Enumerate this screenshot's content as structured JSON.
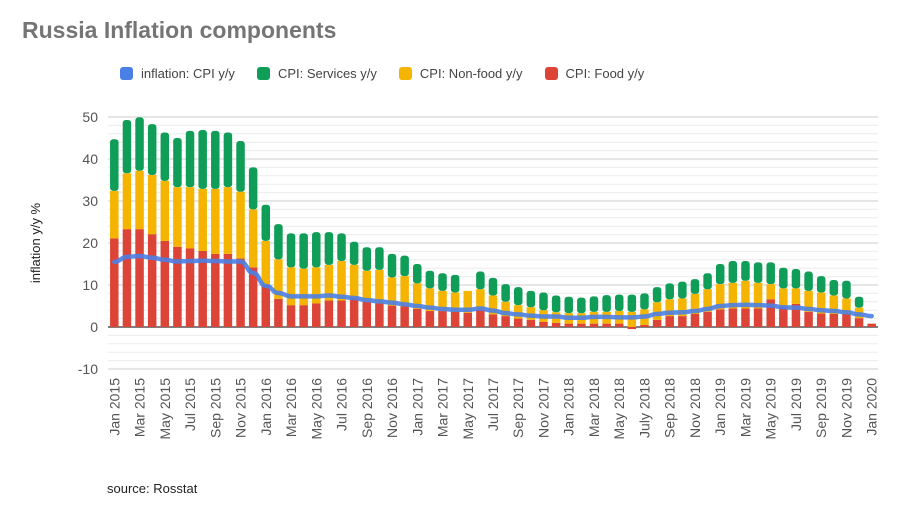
{
  "chart_data": {
    "type": "bar",
    "stacked": true,
    "title": "Russia Inflation components",
    "ylabel": "inflation y/y %",
    "xlabel": "",
    "ylim": [
      -10,
      50
    ],
    "yticks": [
      -10,
      0,
      10,
      20,
      30,
      40,
      50
    ],
    "grid": true,
    "legend_position": "top",
    "source": "source: Rosstat",
    "categories": [
      "Jan 2015",
      "Feb 2015",
      "Mar 2015",
      "Apr 2015",
      "May 2015",
      "Jun 2015",
      "Jul 2015",
      "Aug 2015",
      "Sep 2015",
      "Oct 2015",
      "Nov 2015",
      "Dec 2015",
      "Jan 2016",
      "Feb 2016",
      "Mar 2016",
      "Apr 2016",
      "May 2016",
      "Jun 2016",
      "Jul 2016",
      "Aug 2016",
      "Sep 2016",
      "Oct 2016",
      "Nov 2016",
      "Dec 2016",
      "Jan 2017",
      "Feb 2017",
      "Mar 2017",
      "Apr 2017",
      "May 2017",
      "Jun 2017",
      "Jul 2017",
      "Aug 2017",
      "Sep 2017",
      "Oct 2017",
      "Nov 2017",
      "Dec 2017",
      "Jan 2018",
      "Feb 2018",
      "Mar 2018",
      "Apr 2018",
      "May 2018",
      "Jun 2018",
      "July 2018",
      "Aug 2018",
      "Sep 2018",
      "Oct 2018",
      "Nov 2018",
      "Dec 2018",
      "Jan 2019",
      "Feb 2019",
      "Mar 2019",
      "Apr 2019",
      "May 2019",
      "Jun 2019",
      "Jul 2019",
      "Aug 2019",
      "Sep 2019",
      "Oct 2019",
      "Nov 2019",
      "Dec 2019",
      "Jan 2020"
    ],
    "series": [
      {
        "name": "CPI: Food y/y",
        "type": "bar",
        "color": "#db4437",
        "values": [
          21.1,
          23.3,
          23.3,
          22.1,
          20.5,
          19.1,
          18.7,
          18.1,
          17.4,
          17.4,
          16.3,
          14.2,
          10.0,
          6.7,
          5.2,
          5.2,
          5.6,
          6.3,
          6.3,
          7.0,
          6.0,
          5.6,
          5.1,
          4.9,
          4.3,
          3.8,
          3.8,
          3.6,
          3.4,
          4.1,
          3.0,
          2.6,
          2.0,
          1.7,
          1.2,
          1.0,
          0.8,
          0.8,
          0.8,
          0.8,
          0.8,
          -0.5,
          0.5,
          1.7,
          2.6,
          2.6,
          3.1,
          3.6,
          4.2,
          4.4,
          4.4,
          4.4,
          6.6,
          4.8,
          5.5,
          3.6,
          3.2,
          3.1,
          3.1,
          2.1,
          0.8
        ]
      },
      {
        "name": "CPI: Non-food y/y",
        "type": "bar",
        "color": "#f4b400",
        "values": [
          11.3,
          13.3,
          13.9,
          14.1,
          14.3,
          14.2,
          14.6,
          14.8,
          15.5,
          15.9,
          15.9,
          13.8,
          10.5,
          9.4,
          9.0,
          8.7,
          8.6,
          8.5,
          9.4,
          7.8,
          7.4,
          8.0,
          6.7,
          7.2,
          6.1,
          5.4,
          4.8,
          4.6,
          5.2,
          4.9,
          4.5,
          3.4,
          3.2,
          3.0,
          2.8,
          2.5,
          2.5,
          2.5,
          2.8,
          2.8,
          3.0,
          3.6,
          3.7,
          4.2,
          4.0,
          4.2,
          4.8,
          5.4,
          6.0,
          6.1,
          6.6,
          6.1,
          3.6,
          4.4,
          3.7,
          5.0,
          5.0,
          4.4,
          3.7,
          2.5,
          0
        ]
      },
      {
        "name": "CPI: Services y/y",
        "type": "bar",
        "color": "#0f9d58",
        "values": [
          12.3,
          12.7,
          12.7,
          12.1,
          11.5,
          11.7,
          13.4,
          14.0,
          13.8,
          13.0,
          12.1,
          10.0,
          8.6,
          8.4,
          8.1,
          8.4,
          8.4,
          7.8,
          6.6,
          5.5,
          5.6,
          5.4,
          5.6,
          4.9,
          4.6,
          4.2,
          4.2,
          4.2,
          0,
          4.2,
          4.2,
          4.2,
          4.3,
          3.9,
          4.2,
          4.0,
          3.9,
          3.7,
          3.7,
          4.0,
          3.9,
          4.1,
          3.8,
          3.6,
          3.8,
          4.0,
          3.5,
          3.8,
          4.8,
          5.2,
          4.7,
          4.9,
          5.2,
          4.9,
          4.6,
          4.6,
          3.9,
          3.7,
          4.2,
          2.6,
          0
        ]
      },
      {
        "name": "inflation: CPI y/y",
        "type": "line",
        "color": "#4a7fe6",
        "values": [
          15.5,
          16.7,
          16.9,
          16.5,
          16.0,
          15.6,
          15.7,
          15.8,
          15.7,
          15.6,
          15.6,
          12.9,
          9.8,
          8.1,
          7.3,
          7.3,
          7.3,
          7.5,
          7.2,
          6.9,
          6.4,
          6.1,
          5.8,
          5.4,
          5.0,
          4.6,
          4.3,
          4.1,
          4.1,
          4.4,
          3.9,
          3.3,
          3.0,
          2.7,
          2.5,
          2.5,
          2.2,
          2.2,
          2.4,
          2.4,
          2.3,
          2.3,
          2.5,
          3.1,
          3.4,
          3.5,
          3.8,
          4.3,
          5.0,
          5.2,
          5.3,
          5.2,
          5.1,
          4.7,
          4.6,
          4.3,
          4.0,
          3.8,
          3.5,
          3.0,
          2.6
        ]
      }
    ]
  },
  "legend_order": [
    3,
    2,
    1,
    0
  ]
}
